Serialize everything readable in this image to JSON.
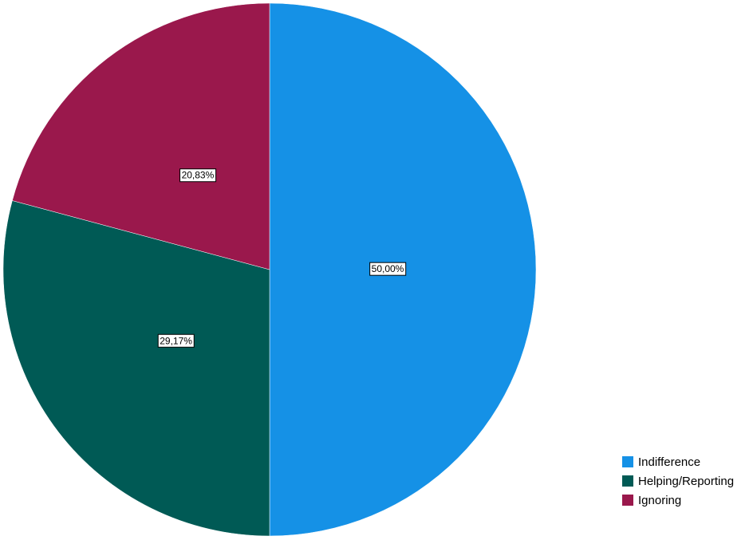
{
  "chart_data": {
    "type": "pie",
    "categories": [
      "Indifference",
      "Helping/Reporting",
      "Ignoring"
    ],
    "values": [
      50,
      29.17,
      20.83
    ],
    "value_labels": [
      "50,00%",
      "29,17%",
      "20,83%"
    ],
    "colors": [
      "#1591e6",
      "#005a55",
      "#9a184c"
    ],
    "legend": "bottom-right"
  }
}
